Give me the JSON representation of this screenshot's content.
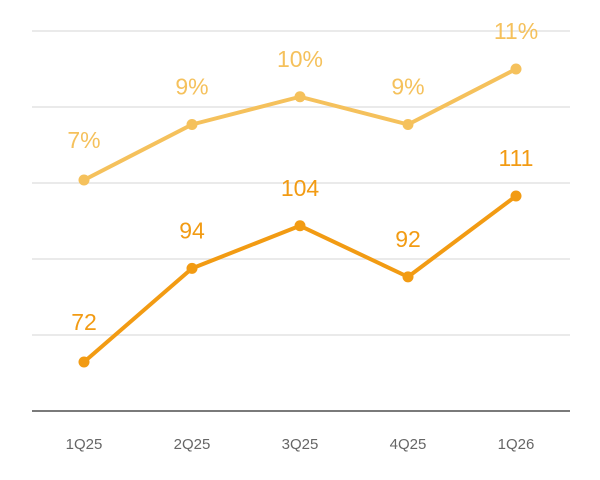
{
  "chart_data": {
    "type": "line",
    "categories": [
      "1Q25",
      "2Q25",
      "3Q25",
      "4Q25",
      "1Q26"
    ],
    "title": "",
    "xlabel": "",
    "ylabel": "",
    "grid": true,
    "legend": "none",
    "series": [
      {
        "key": "absolute",
        "values": [
          72,
          94,
          104,
          92,
          111
        ],
        "labels": [
          "72",
          "94",
          "104",
          "92",
          "111"
        ],
        "color": "#f29b13"
      },
      {
        "key": "percentage",
        "values": [
          7,
          9,
          10,
          9,
          11
        ],
        "labels": [
          "7%",
          "9%",
          "10%",
          "9%",
          "11%"
        ],
        "color": "#f5c15c"
      }
    ]
  }
}
